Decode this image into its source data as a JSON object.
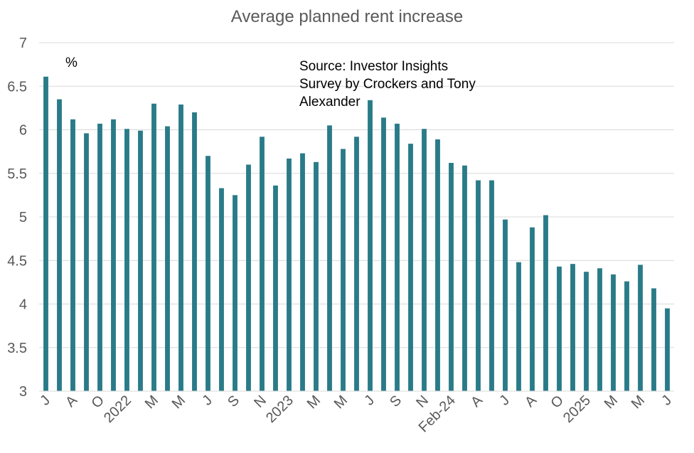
{
  "chart_data": {
    "type": "bar",
    "title": "Average planned rent increase",
    "ylabel_unit": "%",
    "annotation": "Source: Investor Insights Survey by Crockers and Tony Alexander",
    "annotation_lines": [
      "Source: Investor Insights",
      "Survey by Crockers and Tony",
      "Alexander"
    ],
    "ylim": [
      3,
      7
    ],
    "yticks": [
      3,
      3.5,
      4,
      4.5,
      5,
      5.5,
      6,
      6.5,
      7
    ],
    "grid": true,
    "legend": "none",
    "bar_color": "#2a7b88",
    "categories": [
      "J",
      "",
      "A",
      "",
      "O",
      "",
      "2022",
      "",
      "M",
      "",
      "M",
      "",
      "J",
      "",
      "S",
      "",
      "N",
      "",
      "2023",
      "",
      "M",
      "",
      "M",
      "",
      "J",
      "",
      "S",
      "",
      "N",
      "",
      "Feb-24",
      "",
      "A",
      "",
      "J",
      "",
      "A",
      "",
      "O",
      "",
      "2025",
      "",
      "M",
      "",
      "M",
      "",
      "J"
    ],
    "values": [
      6.61,
      6.35,
      6.12,
      5.96,
      6.07,
      6.12,
      6.01,
      5.99,
      6.3,
      6.04,
      6.29,
      6.2,
      5.7,
      5.33,
      5.25,
      5.6,
      5.92,
      5.36,
      5.67,
      5.73,
      5.63,
      6.05,
      5.78,
      5.92,
      6.34,
      6.14,
      6.07,
      5.84,
      6.01,
      5.89,
      5.62,
      5.59,
      5.42,
      5.42,
      4.97,
      4.48,
      4.88,
      5.02,
      4.43,
      4.46,
      4.37,
      4.41,
      4.34,
      4.26,
      4.45,
      4.18,
      3.95
    ]
  }
}
